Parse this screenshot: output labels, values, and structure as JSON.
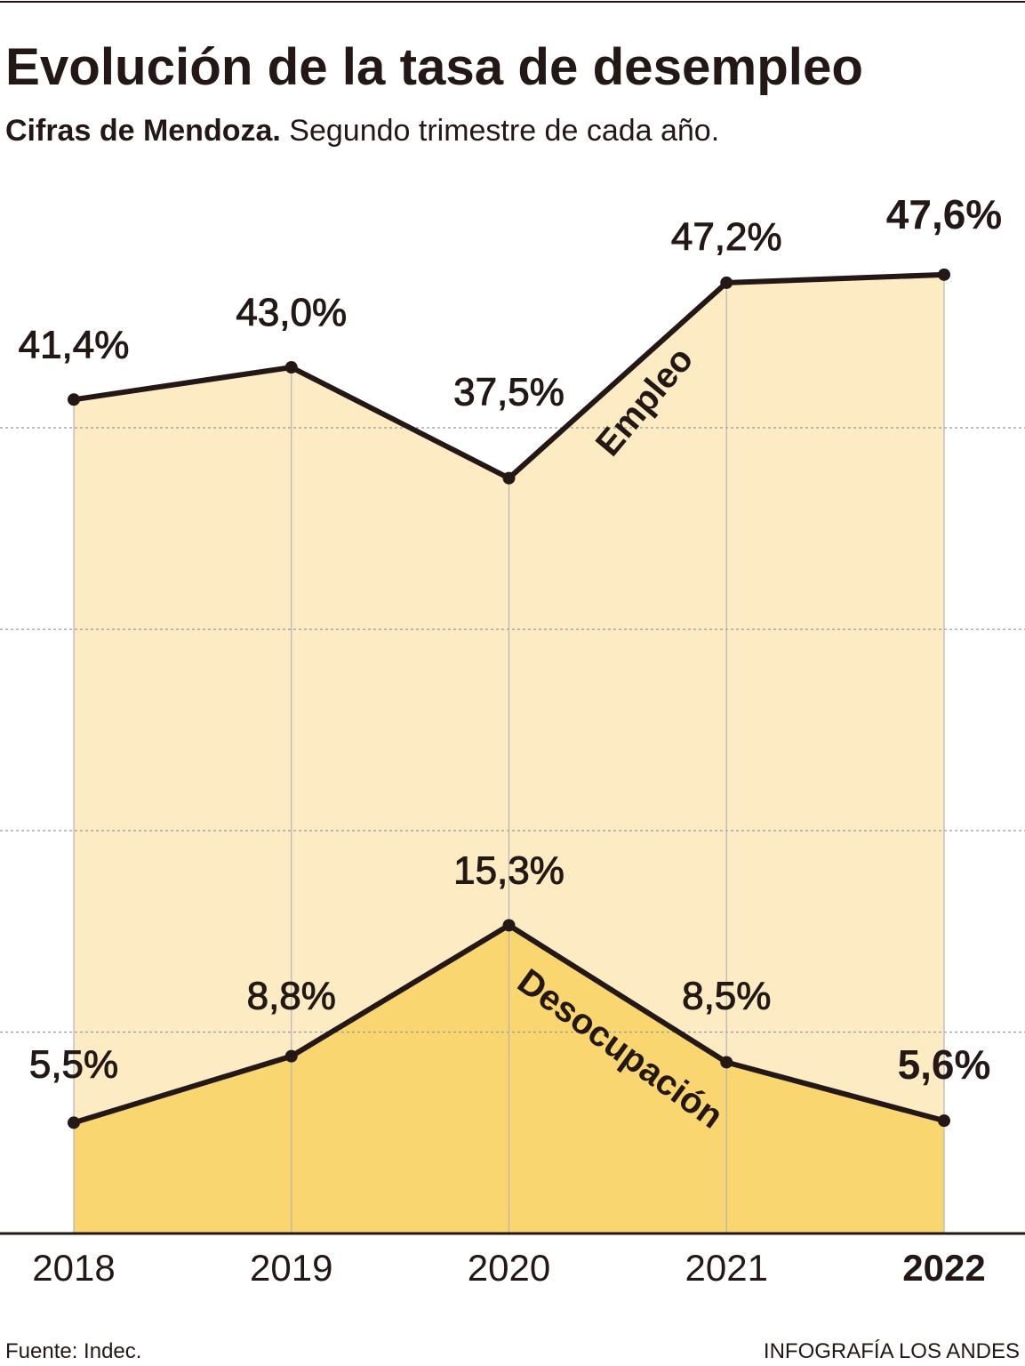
{
  "chart_data": {
    "type": "line",
    "title": "Evolución de la tasa de desempleo",
    "subtitle_lead": "Cifras de Mendoza.",
    "subtitle": "Segundo trimestre de cada año.",
    "categories": [
      "2018",
      "2019",
      "2020",
      "2021",
      "2022"
    ],
    "series": [
      {
        "name": "Empleo",
        "color": "#fcebc3",
        "values": [
          41.4,
          43.0,
          37.5,
          47.2,
          47.6
        ],
        "value_labels": [
          "41,4%",
          "43,0%",
          "37,5%",
          "47,2%",
          "47,6%"
        ]
      },
      {
        "name": "Desocupación",
        "color": "#f9d66f",
        "values": [
          5.5,
          8.8,
          15.3,
          8.5,
          5.6
        ],
        "value_labels": [
          "5,5%",
          "8,8%",
          "15,3%",
          "8,5%",
          "5,6%"
        ]
      }
    ],
    "line_color": "#231815",
    "ylim": [
      0,
      55
    ],
    "yticks": [
      10,
      20,
      30,
      40
    ],
    "grid": true,
    "source": "Fuente: Indec.",
    "credit": "INFOGRAFÍA LOS ANDES"
  }
}
